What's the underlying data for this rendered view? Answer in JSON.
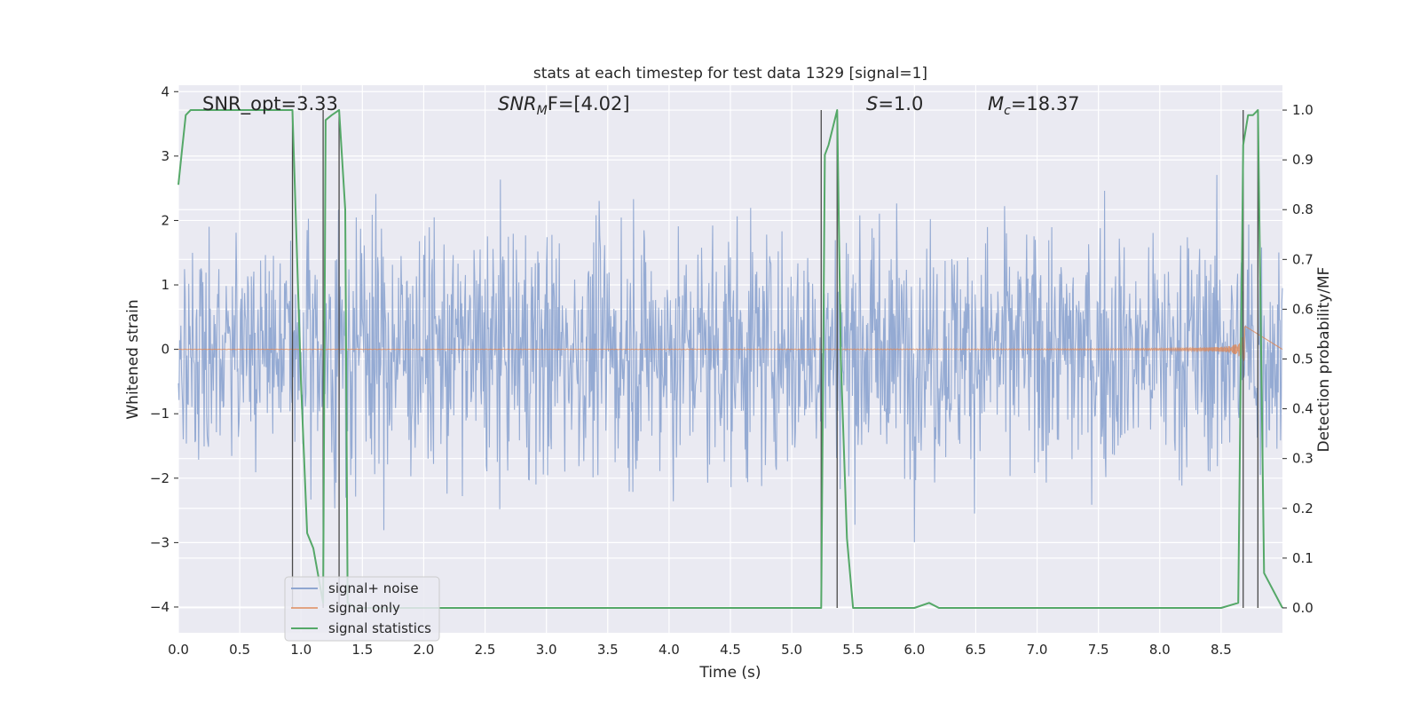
{
  "chart_data": {
    "type": "line",
    "title": "stats at each timestep for test data 1329 [signal=1]",
    "xlabel": "Time (s)",
    "ylabel_left": "Whitened strain",
    "ylabel_right": "Detection probability/MF",
    "xlim": [
      0,
      9
    ],
    "ylim_left": [
      -4.4,
      4.1
    ],
    "ylim_right": [
      -0.05,
      1.05
    ],
    "x_ticks": [
      "0.0",
      "0.5",
      "1.0",
      "1.5",
      "2.0",
      "2.5",
      "3.0",
      "3.5",
      "4.0",
      "4.5",
      "5.0",
      "5.5",
      "6.0",
      "6.5",
      "7.0",
      "7.5",
      "8.0",
      "8.5"
    ],
    "y_ticks_left": [
      "4",
      "3",
      "2",
      "1",
      "0",
      "−1",
      "−2",
      "−3",
      "−4"
    ],
    "y_ticks_right": [
      "1.0",
      "0.9",
      "0.8",
      "0.7",
      "0.6",
      "0.5",
      "0.4",
      "0.3",
      "0.2",
      "0.1",
      "0.0"
    ],
    "grid": true,
    "annotations": {
      "snr_opt": "SNR_opt=3.33",
      "snr_mf": {
        "base": "SNR",
        "sub": "M",
        "rest": "F=[4.02]"
      },
      "s_val": {
        "base": "S",
        "rest": "=1.0"
      },
      "mc_val": {
        "base": "M",
        "sub": "c",
        "rest": "=18.37"
      }
    },
    "legend": {
      "position": "lower-left",
      "entries": [
        "signal+ noise",
        "signal only",
        "signal statistics"
      ]
    },
    "colors": {
      "noise": "#8fa6d1",
      "signal": "#dd8452",
      "stats": "#55a868",
      "vlines": "#4a4a4a",
      "background": "#eaeaf2",
      "grid": "#ffffff"
    },
    "series": [
      {
        "name": "signal+ noise",
        "description_range": [
          -4.0,
          4.0
        ],
        "typical_amplitude": 1.6
      },
      {
        "name": "signal only",
        "chirp_end": 8.7,
        "peak_amplitude": 0.65
      },
      {
        "name": "signal statistics",
        "x": [
          0.0,
          0.03,
          0.06,
          0.1,
          0.2,
          0.5,
          0.9,
          0.93,
          1.0,
          1.05,
          1.1,
          1.18,
          1.2,
          1.25,
          1.31,
          1.36,
          1.38,
          1.45,
          1.5,
          2.0,
          3.0,
          4.0,
          5.0,
          5.24,
          5.27,
          5.3,
          5.37,
          5.4,
          5.45,
          5.5,
          5.55,
          6.0,
          6.12,
          6.2,
          7.0,
          8.0,
          8.5,
          8.64,
          8.68,
          8.72,
          8.76,
          8.8,
          8.85,
          9.0
        ],
        "y": [
          0.85,
          0.92,
          0.99,
          1.0,
          1.0,
          1.0,
          1.0,
          1.0,
          0.45,
          0.15,
          0.12,
          0.01,
          0.98,
          0.99,
          1.0,
          0.8,
          0.01,
          0.0,
          0.0,
          0.0,
          0.0,
          0.0,
          0.0,
          0.0,
          0.91,
          0.93,
          1.0,
          0.5,
          0.14,
          0.0,
          0.0,
          0.0,
          0.01,
          0.0,
          0.0,
          0.0,
          0.0,
          0.01,
          0.93,
          0.99,
          0.99,
          1.0,
          0.07,
          0.0
        ]
      }
    ],
    "vlines_x": [
      0.93,
      1.18,
      1.31,
      5.24,
      5.37,
      8.68,
      8.8
    ]
  }
}
